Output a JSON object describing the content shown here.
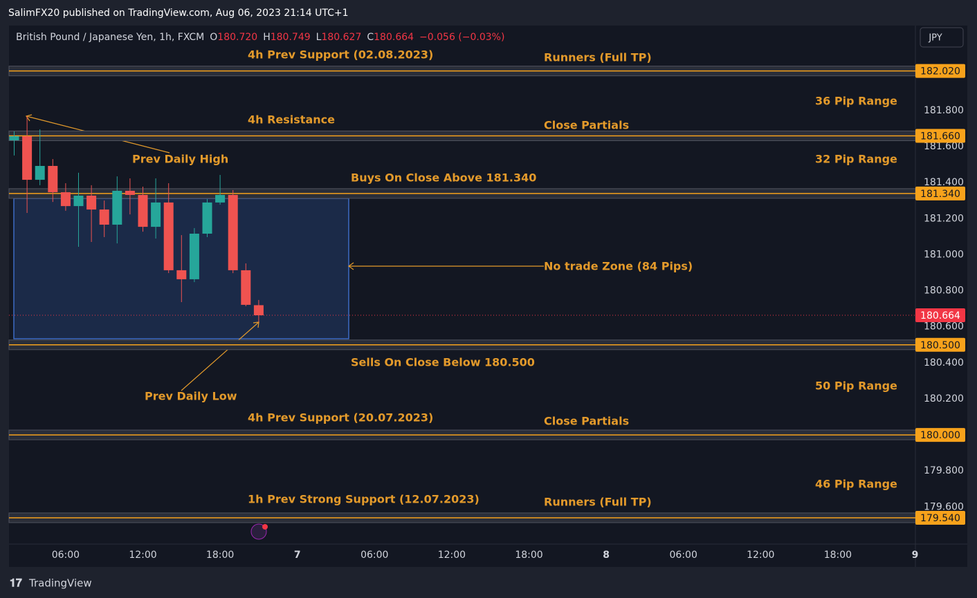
{
  "header": {
    "publisher": "SalimFX20 published on TradingView.com, Aug 06, 2023 21:14 UTC+1",
    "symbol": "British Pound / Japanese Yen, 1h, FXCM",
    "ohlc": [
      {
        "label": "O",
        "value": "180.720"
      },
      {
        "label": "H",
        "value": "180.749"
      },
      {
        "label": "L",
        "value": "180.627"
      },
      {
        "label": "C",
        "value": "180.664"
      }
    ],
    "change": "−0.056 (−0.03%)",
    "currency": "JPY",
    "footer": "TradingView"
  },
  "chart_data": {
    "type": "candlestick",
    "categories": [
      null,
      null,
      null,
      null,
      "06:00",
      null,
      null,
      null,
      null,
      null,
      "12:00",
      null,
      null,
      null,
      null,
      null,
      "18:00",
      null,
      null,
      null,
      null,
      null,
      "7",
      null,
      null,
      null,
      null,
      null,
      "06:00",
      null,
      null,
      null,
      null,
      null,
      "12:00",
      null,
      null,
      null,
      null,
      null,
      "18:00",
      null,
      null,
      null,
      null,
      null,
      "8",
      null,
      null,
      null,
      null,
      null,
      "06:00",
      null,
      null,
      null,
      null,
      null,
      "12:00",
      null,
      null,
      null,
      null,
      null,
      "18:00",
      null,
      null,
      null,
      null,
      null,
      "9"
    ],
    "open": [
      181.635,
      181.658,
      181.416,
      181.493,
      181.347,
      181.27,
      181.328,
      181.251,
      181.167,
      181.355,
      181.332,
      181.155,
      181.29,
      180.914,
      180.864,
      181.117,
      181.29,
      181.332,
      180.914,
      180.72,
      null,
      null,
      null,
      null,
      null,
      null,
      null,
      null,
      null,
      null,
      null,
      null,
      null,
      null,
      null,
      null,
      null,
      null,
      null,
      null,
      null,
      null,
      null,
      null,
      null,
      null,
      null,
      null,
      null,
      null,
      null,
      null,
      null,
      null,
      null,
      null,
      null,
      null,
      null,
      null,
      null,
      null,
      null,
      null,
      null,
      null,
      null,
      null,
      null,
      null,
      null
    ],
    "high": [
      181.685,
      181.769,
      181.696,
      181.531,
      181.397,
      181.455,
      181.386,
      181.301,
      181.435,
      181.424,
      181.378,
      181.424,
      181.397,
      181.109,
      181.148,
      181.309,
      181.443,
      181.359,
      180.952,
      180.749,
      null,
      null,
      null,
      null,
      null,
      null,
      null,
      null,
      null,
      null,
      null,
      null,
      null,
      null,
      null,
      null,
      null,
      null,
      null,
      null,
      null,
      null,
      null,
      null,
      null,
      null,
      null,
      null,
      null,
      null,
      null,
      null,
      null,
      null,
      null,
      null,
      null,
      null,
      null,
      null,
      null,
      null,
      null,
      null,
      null,
      null,
      null,
      null,
      null,
      null,
      null
    ],
    "low": [
      181.551,
      181.232,
      181.386,
      181.293,
      181.244,
      181.044,
      181.071,
      181.098,
      181.063,
      181.224,
      181.128,
      181.09,
      180.898,
      180.737,
      180.848,
      181.098,
      181.278,
      180.898,
      180.714,
      180.627,
      null,
      null,
      null,
      null,
      null,
      null,
      null,
      null,
      null,
      null,
      null,
      null,
      null,
      null,
      null,
      null,
      null,
      null,
      null,
      null,
      null,
      null,
      null,
      null,
      null,
      null,
      null,
      null,
      null,
      null,
      null,
      null,
      null,
      null,
      null,
      null,
      null,
      null,
      null,
      null,
      null,
      null,
      null,
      null,
      null,
      null,
      null,
      null,
      null,
      null,
      null
    ],
    "close": [
      181.658,
      181.416,
      181.493,
      181.347,
      181.27,
      181.328,
      181.251,
      181.167,
      181.355,
      181.332,
      181.155,
      181.29,
      180.914,
      180.864,
      181.117,
      181.29,
      181.332,
      180.914,
      180.722,
      180.664,
      null,
      null,
      null,
      null,
      null,
      null,
      null,
      null,
      null,
      null,
      null,
      null,
      null,
      null,
      null,
      null,
      null,
      null,
      null,
      null,
      null,
      null,
      null,
      null,
      null,
      null,
      null,
      null,
      null,
      null,
      null,
      null,
      null,
      null,
      null,
      null,
      null,
      null,
      null,
      null,
      null,
      null,
      null,
      null,
      null,
      null,
      null,
      null,
      null,
      null,
      null
    ],
    "up_color": "#26a69a",
    "down_color": "#ef5350",
    "ylim": [
      179.394,
      182.272
    ],
    "yticks": [
      {
        "value": 179.6,
        "label": "179.600"
      },
      {
        "value": 179.8,
        "label": "179.800"
      },
      {
        "value": 180.2,
        "label": "180.200"
      },
      {
        "value": 180.4,
        "label": "180.400"
      },
      {
        "value": 180.6,
        "label": "180.600"
      },
      {
        "value": 180.8,
        "label": "180.800"
      },
      {
        "value": 181.0,
        "label": "181.000"
      },
      {
        "value": 181.2,
        "label": "181.200"
      },
      {
        "value": 181.4,
        "label": "181.400"
      },
      {
        "value": 181.6,
        "label": "181.600"
      },
      {
        "value": 181.8,
        "label": "181.800"
      }
    ],
    "levels": [
      {
        "value": 182.02,
        "label": "182.020"
      },
      {
        "value": 181.66,
        "label": "181.660"
      },
      {
        "value": 181.34,
        "label": "181.340"
      },
      {
        "value": 180.5,
        "label": "180.500"
      },
      {
        "value": 180.0,
        "label": "180.000"
      },
      {
        "value": 179.54,
        "label": "179.540"
      }
    ],
    "level_color": "#f7a21b",
    "current_price": {
      "value": 180.664,
      "label": "180.664"
    },
    "current_color": "#f23645",
    "annotations": [
      "4h Prev Support (02.08.2023)",
      "Runners (Full TP)",
      "36 Pip Range",
      "4h Resistance",
      "Close Partials",
      "Prev Daily High",
      "32 Pip Range",
      "Buys On Close Above 181.340",
      "No trade Zone (84 Pips)",
      "Sells On Close Below 180.500",
      "50 Pip Range",
      "Prev Daily Low",
      "4h Prev Support (20.07.2023)",
      "Close Partials",
      "46 Pip Range",
      "1h Prev Strong Support (12.07.2023)",
      "Runners (Full TP)"
    ],
    "annotation_color": "#e39a2b"
  }
}
